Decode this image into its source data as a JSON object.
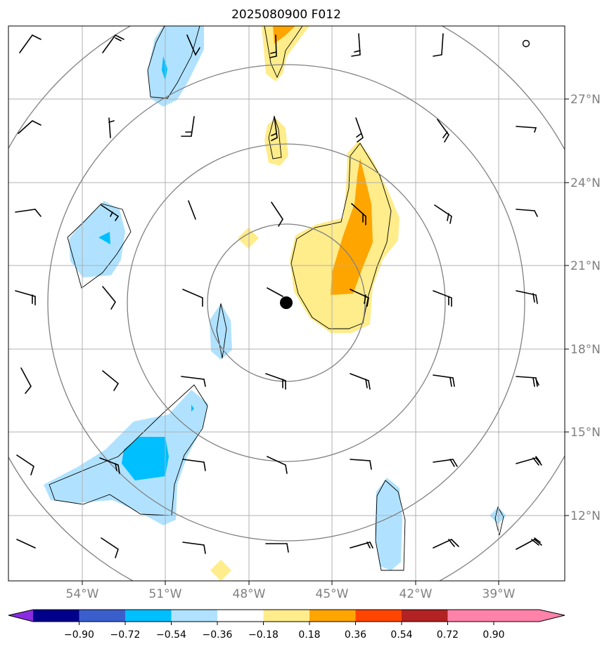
{
  "title": "2025080900 F012",
  "longitude_ticks": [
    "54°W",
    "51°W",
    "48°W",
    "45°W",
    "42°W",
    "39°W"
  ],
  "latitude_ticks": [
    "27°N",
    "24°N",
    "21°N",
    "18°N",
    "15°N",
    "12°N"
  ],
  "colorbar": {
    "levels": [
      "−0.90",
      "−0.72",
      "−0.54",
      "−0.36",
      "−0.18",
      "0.18",
      "0.36",
      "0.54",
      "0.72",
      "0.90"
    ],
    "colors": [
      "#8a2be2",
      "#00008b",
      "#3a5fcd",
      "#00bfff",
      "#b0e2ff",
      "#ffffff",
      "#ffec8b",
      "#ffa500",
      "#ff4500",
      "#b22222",
      "#ff82ab"
    ]
  },
  "colors": {
    "range_ring": "#808080",
    "grid": "#b0b0b0",
    "light_blue": "#b0e2ff",
    "mid_blue": "#00bfff",
    "light_yellow": "#ffec8b",
    "orange": "#ffa500"
  }
}
